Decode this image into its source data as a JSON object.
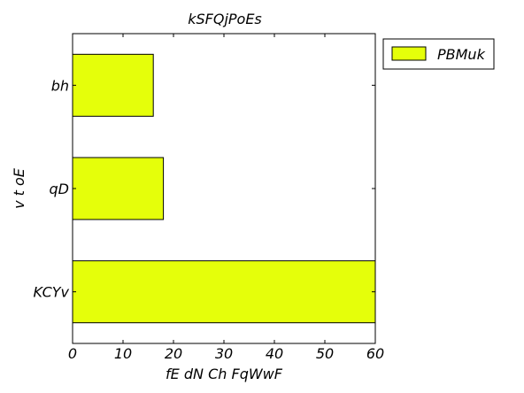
{
  "chart_data": {
    "type": "bar",
    "orientation": "horizontal",
    "title": "kSFQjPoEs",
    "xlabel": "fE dN Ch FqWwF",
    "ylabel": "v t oE",
    "categories": [
      "bh",
      "qD",
      "KCYv"
    ],
    "series": [
      {
        "name": "PBMuk",
        "values": [
          16,
          18,
          60
        ],
        "color": "#e5ff0a"
      }
    ],
    "xlim": [
      0,
      60
    ],
    "xticks": [
      "0",
      "10",
      "20",
      "30",
      "40",
      "50",
      "60"
    ],
    "grid": false,
    "legend_position": "outside-top-right"
  }
}
